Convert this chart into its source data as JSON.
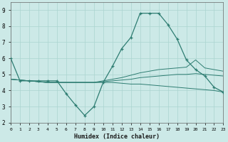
{
  "xlabel": "Humidex (Indice chaleur)",
  "x": [
    0,
    1,
    2,
    3,
    4,
    5,
    6,
    7,
    8,
    9,
    10,
    11,
    12,
    13,
    14,
    15,
    16,
    17,
    18,
    19,
    20,
    21,
    22,
    23
  ],
  "line1": [
    6.0,
    4.6,
    4.6,
    4.6,
    4.6,
    4.6,
    3.8,
    3.1,
    2.45,
    3.0,
    4.5,
    5.5,
    6.6,
    7.3,
    8.8,
    8.8,
    8.8,
    8.1,
    7.2,
    5.9,
    5.3,
    4.9,
    4.2,
    3.9
  ],
  "line2": [
    4.7,
    4.65,
    4.6,
    4.55,
    4.5,
    4.5,
    4.5,
    4.5,
    4.5,
    4.5,
    4.6,
    4.7,
    4.8,
    4.95,
    5.1,
    5.2,
    5.3,
    5.35,
    5.4,
    5.45,
    5.9,
    5.4,
    5.3,
    5.2
  ],
  "line3": [
    4.7,
    4.65,
    4.6,
    4.55,
    4.5,
    4.5,
    4.5,
    4.5,
    4.5,
    4.5,
    4.55,
    4.6,
    4.65,
    4.7,
    4.8,
    4.85,
    4.9,
    4.95,
    5.0,
    5.0,
    5.05,
    5.0,
    4.95,
    4.9
  ],
  "line4": [
    4.7,
    4.65,
    4.6,
    4.55,
    4.5,
    4.5,
    4.5,
    4.5,
    4.5,
    4.5,
    4.5,
    4.5,
    4.45,
    4.4,
    4.4,
    4.35,
    4.3,
    4.25,
    4.2,
    4.15,
    4.1,
    4.05,
    4.0,
    3.9
  ],
  "line_color": "#2e7d72",
  "bg_color": "#cce9e7",
  "grid_color": "#aad4d0",
  "xlim": [
    0,
    23
  ],
  "ylim": [
    2.0,
    9.5
  ],
  "yticks": [
    2,
    3,
    4,
    5,
    6,
    7,
    8,
    9
  ],
  "xtick_labels": [
    "0",
    "1",
    "2",
    "3",
    "4",
    "5",
    "6",
    "7",
    "8",
    "9",
    "10",
    "11",
    "12",
    "13",
    "14",
    "15",
    "16",
    "17",
    "18",
    "19",
    "20",
    "21",
    "22",
    "23"
  ]
}
